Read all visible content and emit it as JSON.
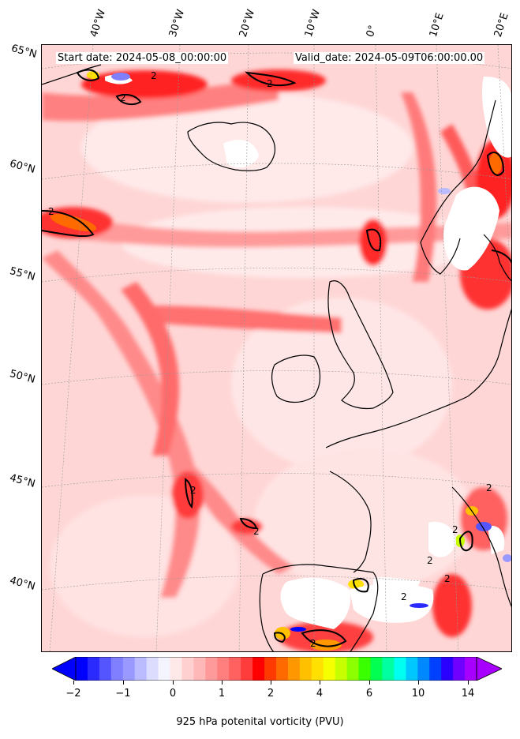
{
  "map": {
    "start_date": "Start date: 2024-05-08_00:00:00",
    "valid_date": "Valid_date: 2024-05-09T06:00:00.00",
    "contour_label": "2",
    "lon_labels": [
      "40°W",
      "30°W",
      "20°W",
      "10°W",
      "0°",
      "10°E",
      "20°E"
    ],
    "lat_labels": [
      "65°N",
      "60°N",
      "55°N",
      "50°N",
      "45°N",
      "40°N"
    ]
  },
  "colorbar": {
    "label": "925 hPa potenital vorticity (PVU)",
    "ticks": [
      "−2",
      "−1",
      "0",
      "1",
      "2",
      "4",
      "6",
      "10",
      "14"
    ],
    "colors": [
      "#0000ff",
      "#2a2aff",
      "#5555ff",
      "#7f7fff",
      "#9999ff",
      "#bbbbff",
      "#dcdcff",
      "#f4f4ff",
      "#ffe8e8",
      "#ffd0d0",
      "#ffb8b8",
      "#ff9a9a",
      "#ff7e7e",
      "#ff6060",
      "#ff3c3c",
      "#ff0000",
      "#ff3a00",
      "#ff6a00",
      "#ff9800",
      "#ffc000",
      "#ffe000",
      "#f6ff00",
      "#c8ff00",
      "#8cff00",
      "#3aff00",
      "#00ff50",
      "#00ffa0",
      "#00fff0",
      "#00c8ff",
      "#0088ff",
      "#0040ff",
      "#2a00ff",
      "#7000ff",
      "#a800ff"
    ],
    "under_color": "#0000ff",
    "over_color": "#a800ff"
  }
}
